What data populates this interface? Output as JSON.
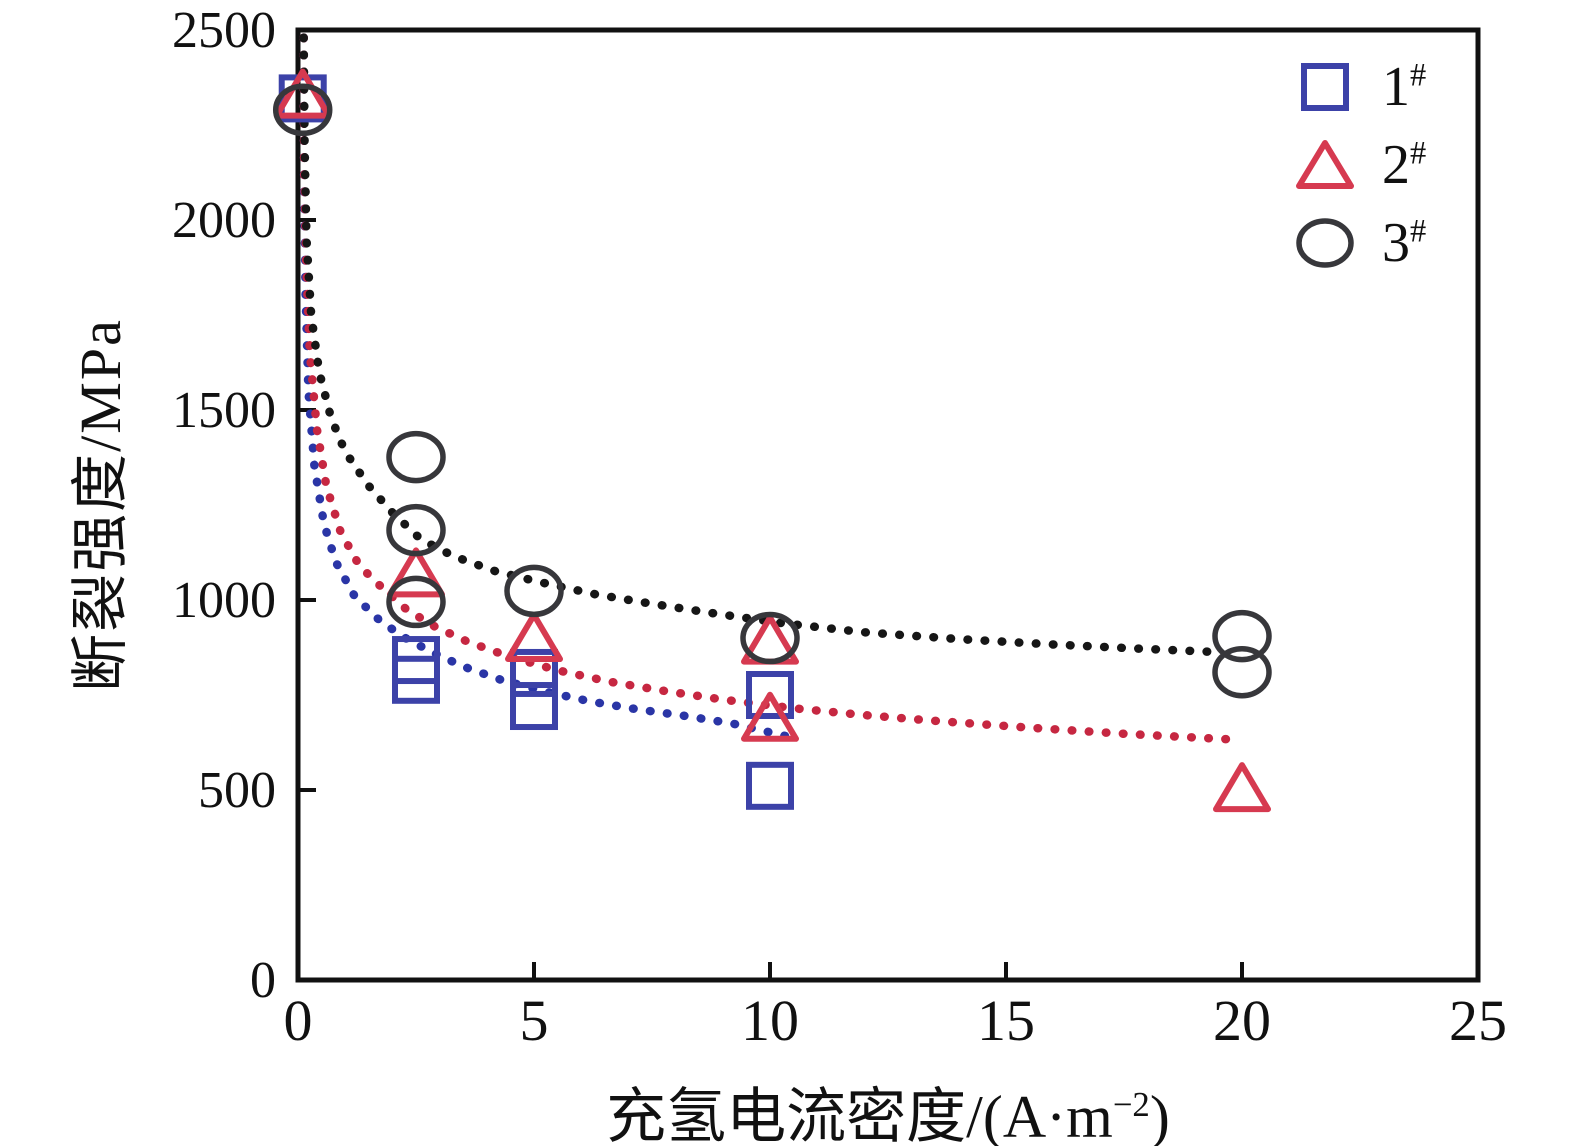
{
  "figure": {
    "background": "#ffffff",
    "border_color": "#111111"
  },
  "axes": {
    "x": {
      "title_main": "充氢电流密度/(A·m",
      "title_sup": "−2",
      "title_close": ")",
      "ticks": [
        "0",
        "5",
        "10",
        "15",
        "20",
        "25"
      ]
    },
    "y": {
      "title": "断裂强度/MPa",
      "ticks": [
        "0",
        "500",
        "1000",
        "1500",
        "2000",
        "2500"
      ]
    }
  },
  "legend": {
    "items": [
      {
        "label": "1",
        "sup": "#",
        "marker": "square"
      },
      {
        "label": "2",
        "sup": "#",
        "marker": "triangle"
      },
      {
        "label": "3",
        "sup": "#",
        "marker": "circle"
      }
    ]
  },
  "chart_data": {
    "type": "scatter",
    "title": "",
    "xlabel": "充氢电流密度/(A·m⁻²)",
    "ylabel": "断裂强度/MPa",
    "xlim": [
      0,
      25
    ],
    "ylim": [
      0,
      2500
    ],
    "x_ticks": [
      0,
      5,
      10,
      15,
      20,
      25
    ],
    "y_ticks": [
      0,
      500,
      1000,
      1500,
      2000,
      2500
    ],
    "grid": false,
    "legend_position": "top-right",
    "series": [
      {
        "name": "1#",
        "marker": "square",
        "color": "#3c42a8",
        "line_color": "#2a35a6",
        "line_style": "dotted",
        "points": [
          [
            0.1,
            2320
          ],
          [
            2.5,
            842
          ],
          [
            2.5,
            790
          ],
          [
            5,
            808
          ],
          [
            5,
            721
          ],
          [
            10,
            750
          ],
          [
            10,
            511
          ]
        ],
        "trend": [
          [
            0.12,
            2480
          ],
          [
            0.13,
            2100
          ],
          [
            0.16,
            1800
          ],
          [
            0.22,
            1550
          ],
          [
            0.35,
            1350
          ],
          [
            0.55,
            1200
          ],
          [
            0.8,
            1100
          ],
          [
            1.2,
            1010
          ],
          [
            1.7,
            950
          ],
          [
            2.2,
            905
          ],
          [
            2.8,
            865
          ],
          [
            3.5,
            825
          ],
          [
            4.3,
            790
          ],
          [
            5.2,
            760
          ],
          [
            6.2,
            733
          ],
          [
            7.2,
            712
          ],
          [
            8.2,
            695
          ],
          [
            9.2,
            675
          ],
          [
            10.4,
            640
          ]
        ]
      },
      {
        "name": "2#",
        "marker": "triangle",
        "color": "#d63a50",
        "line_color": "#c62741",
        "line_style": "dotted",
        "points": [
          [
            0.1,
            2330
          ],
          [
            2.5,
            1070
          ],
          [
            5,
            900
          ],
          [
            10,
            893
          ],
          [
            10,
            690
          ],
          [
            20,
            505
          ]
        ],
        "trend": [
          [
            0.12,
            2480
          ],
          [
            0.13,
            2150
          ],
          [
            0.17,
            1900
          ],
          [
            0.25,
            1650
          ],
          [
            0.4,
            1450
          ],
          [
            0.6,
            1300
          ],
          [
            0.9,
            1180
          ],
          [
            1.3,
            1090
          ],
          [
            1.8,
            1030
          ],
          [
            2.3,
            975
          ],
          [
            2.9,
            930
          ],
          [
            3.6,
            890
          ],
          [
            4.5,
            850
          ],
          [
            5.5,
            815
          ],
          [
            6.6,
            785
          ],
          [
            7.8,
            760
          ],
          [
            9,
            738
          ],
          [
            10.5,
            715
          ],
          [
            12,
            697
          ],
          [
            13.7,
            680
          ],
          [
            15.5,
            664
          ],
          [
            17.5,
            648
          ],
          [
            19.8,
            633
          ]
        ]
      },
      {
        "name": "3#",
        "marker": "circle",
        "color": "#37373b",
        "line_color": "#161616",
        "line_style": "dotted",
        "points": [
          [
            0.1,
            2290
          ],
          [
            2.5,
            1376
          ],
          [
            2.5,
            1184
          ],
          [
            2.5,
            995
          ],
          [
            5,
            1024
          ],
          [
            10,
            900
          ],
          [
            20,
            905
          ],
          [
            20,
            810
          ]
        ],
        "trend": [
          [
            0.12,
            2480
          ],
          [
            0.14,
            2200
          ],
          [
            0.18,
            1950
          ],
          [
            0.28,
            1750
          ],
          [
            0.45,
            1600
          ],
          [
            0.7,
            1480
          ],
          [
            1,
            1390
          ],
          [
            1.5,
            1300
          ],
          [
            2,
            1230
          ],
          [
            2.6,
            1160
          ],
          [
            3.3,
            1115
          ],
          [
            4.2,
            1075
          ],
          [
            5.2,
            1045
          ],
          [
            6.3,
            1015
          ],
          [
            7.5,
            990
          ],
          [
            8.8,
            965
          ],
          [
            10.2,
            940
          ],
          [
            12,
            915
          ],
          [
            14,
            897
          ],
          [
            16,
            883
          ],
          [
            17.8,
            872
          ],
          [
            19.3,
            864
          ]
        ]
      }
    ]
  }
}
